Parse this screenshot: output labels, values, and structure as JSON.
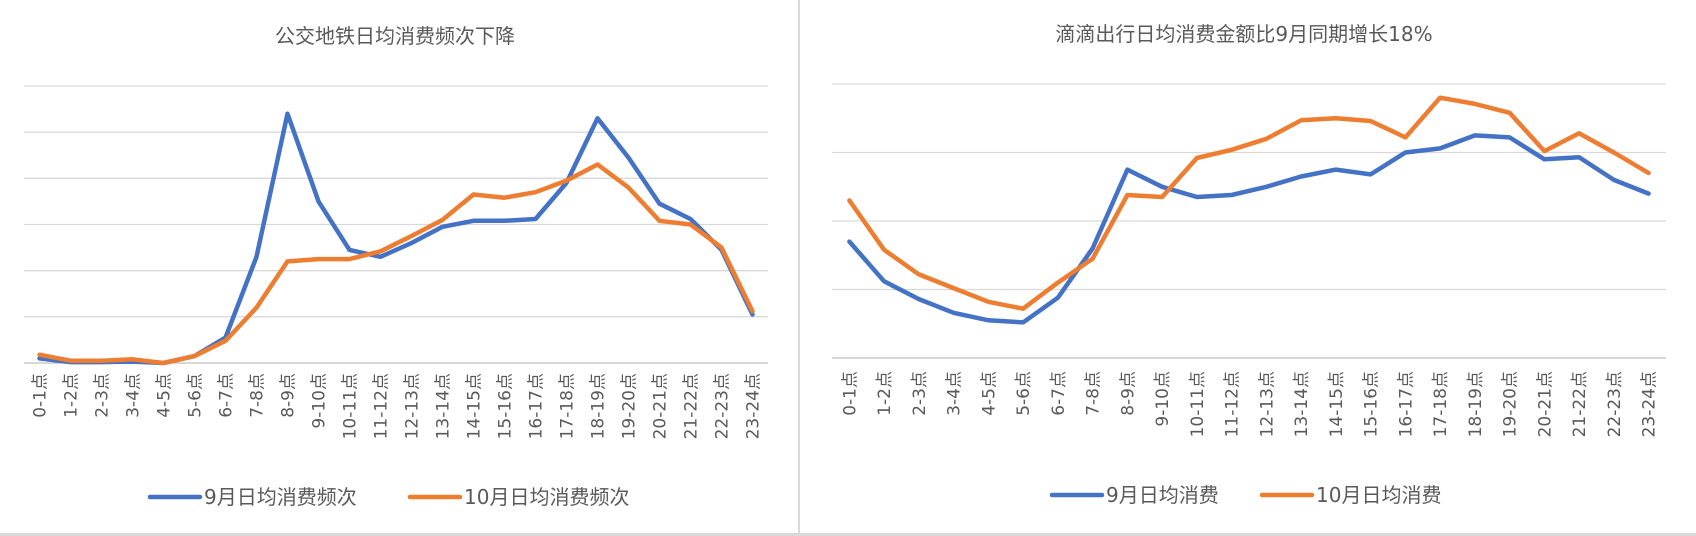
{
  "chart_data": [
    {
      "type": "line",
      "title": "公交地铁日均消费频次下降",
      "categories": [
        "0-1点",
        "1-2点",
        "2-3点",
        "3-4点",
        "4-5点",
        "5-6点",
        "6-7点",
        "7-8点",
        "8-9点",
        "9-10点",
        "10-11点",
        "11-12点",
        "12-13点",
        "13-14点",
        "14-15点",
        "15-16点",
        "16-17点",
        "17-18点",
        "18-19点",
        "19-20点",
        "20-21点",
        "21-22点",
        "22-23点",
        "23-24点"
      ],
      "ylim": [
        0,
        6
      ],
      "grid": true,
      "legend": "bottom",
      "series": [
        {
          "name": "9月日均消费频次",
          "color": "#4472C4",
          "values": [
            0.1,
            0.02,
            0.02,
            0.03,
            0.0,
            0.15,
            0.55,
            2.3,
            5.4,
            3.5,
            2.45,
            2.3,
            2.6,
            2.95,
            3.08,
            3.08,
            3.12,
            3.9,
            5.3,
            4.45,
            3.45,
            3.12,
            2.45,
            1.05
          ]
        },
        {
          "name": "10月日均消费频次",
          "color": "#ED7D31",
          "values": [
            0.18,
            0.05,
            0.05,
            0.08,
            0.0,
            0.15,
            0.48,
            1.2,
            2.2,
            2.25,
            2.25,
            2.42,
            2.75,
            3.1,
            3.65,
            3.58,
            3.7,
            3.95,
            4.3,
            3.8,
            3.08,
            3.0,
            2.5,
            1.12
          ]
        }
      ]
    },
    {
      "type": "line",
      "title": "滴滴出行日均消费金额比9月同期增长18%",
      "categories": [
        "0-1点",
        "1-2点",
        "2-3点",
        "3-4点",
        "4-5点",
        "5-6点",
        "6-7点",
        "7-8点",
        "8-9点",
        "9-10点",
        "10-11点",
        "11-12点",
        "12-13点",
        "13-14点",
        "14-15点",
        "15-16点",
        "16-17点",
        "17-18点",
        "18-19点",
        "19-20点",
        "20-21点",
        "21-22点",
        "22-23点",
        "23-24点"
      ],
      "ylim": [
        0,
        4
      ],
      "grid": true,
      "legend": "bottom",
      "series": [
        {
          "name": "9月日均消费",
          "color": "#4472C4",
          "values": [
            1.7,
            1.12,
            0.86,
            0.66,
            0.55,
            0.52,
            0.88,
            1.6,
            2.75,
            2.5,
            2.35,
            2.38,
            2.5,
            2.65,
            2.75,
            2.68,
            3.0,
            3.06,
            3.25,
            3.22,
            2.9,
            2.93,
            2.6,
            2.4
          ]
        },
        {
          "name": "10月日均消费",
          "color": "#ED7D31",
          "values": [
            2.3,
            1.58,
            1.22,
            1.02,
            0.82,
            0.72,
            1.1,
            1.45,
            2.38,
            2.35,
            2.92,
            3.04,
            3.2,
            3.47,
            3.5,
            3.46,
            3.22,
            3.8,
            3.71,
            3.58,
            3.02,
            3.28,
            3.0,
            2.7
          ]
        }
      ]
    }
  ]
}
